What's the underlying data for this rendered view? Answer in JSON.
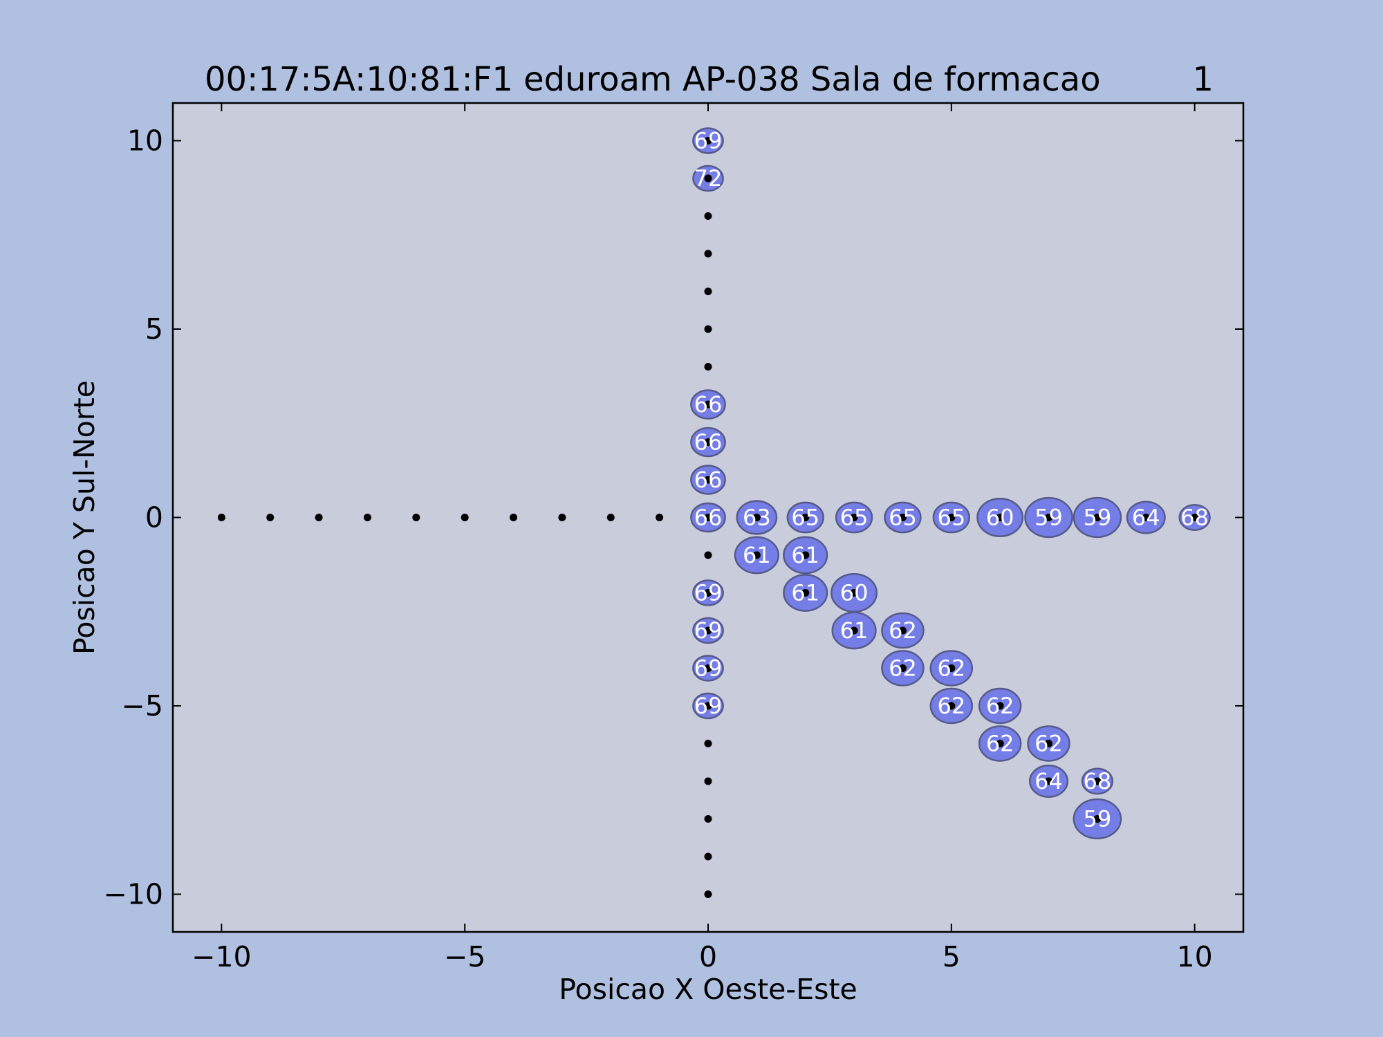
{
  "chart_data": {
    "type": "scatter",
    "title": "00:17:5A:10:81:F1 eduroam AP-038 Sala de formacao",
    "title_suffix": "1",
    "xlabel": "Posicao X Oeste-Este",
    "ylabel": "Posicao Y Sul-Norte",
    "xlim": [
      -11,
      11
    ],
    "ylim": [
      -11,
      11
    ],
    "x_ticks": [
      -10,
      -5,
      0,
      5,
      10
    ],
    "y_ticks": [
      -10,
      -5,
      0,
      5,
      10
    ],
    "x_tick_labels": [
      "−10",
      "−5",
      "0",
      "5",
      "10"
    ],
    "y_tick_labels": [
      "−10",
      "−5",
      "0",
      "5",
      "10"
    ],
    "grid": false,
    "colors": {
      "figure_background": "#b0c0e0",
      "plot_background": "#c8ccdb",
      "marker_fill": "#6670e8",
      "marker_edge": "#555a8a",
      "point_color": "#000000",
      "label_color": "#ffffff"
    },
    "grid_points": [
      {
        "x": -10,
        "y": 0
      },
      {
        "x": -9,
        "y": 0
      },
      {
        "x": -8,
        "y": 0
      },
      {
        "x": -7,
        "y": 0
      },
      {
        "x": -6,
        "y": 0
      },
      {
        "x": -5,
        "y": 0
      },
      {
        "x": -4,
        "y": 0
      },
      {
        "x": -3,
        "y": 0
      },
      {
        "x": -2,
        "y": 0
      },
      {
        "x": -1,
        "y": 0
      },
      {
        "x": 0,
        "y": 10
      },
      {
        "x": 0,
        "y": 9
      },
      {
        "x": 0,
        "y": 8
      },
      {
        "x": 0,
        "y": 7
      },
      {
        "x": 0,
        "y": 6
      },
      {
        "x": 0,
        "y": 5
      },
      {
        "x": 0,
        "y": 4
      },
      {
        "x": 0,
        "y": 3
      },
      {
        "x": 0,
        "y": 2
      },
      {
        "x": 0,
        "y": 1
      },
      {
        "x": 0,
        "y": 0
      },
      {
        "x": 0,
        "y": -1
      },
      {
        "x": 0,
        "y": -2
      },
      {
        "x": 0,
        "y": -3
      },
      {
        "x": 0,
        "y": -4
      },
      {
        "x": 0,
        "y": -5
      },
      {
        "x": 0,
        "y": -6
      },
      {
        "x": 0,
        "y": -7
      },
      {
        "x": 0,
        "y": -8
      },
      {
        "x": 0,
        "y": -9
      },
      {
        "x": 0,
        "y": -10
      },
      {
        "x": 1,
        "y": 0
      },
      {
        "x": 2,
        "y": 0
      },
      {
        "x": 3,
        "y": 0
      },
      {
        "x": 4,
        "y": 0
      },
      {
        "x": 5,
        "y": 0
      },
      {
        "x": 6,
        "y": 0
      },
      {
        "x": 7,
        "y": 0
      },
      {
        "x": 8,
        "y": 0
      },
      {
        "x": 9,
        "y": 0
      },
      {
        "x": 10,
        "y": 0
      },
      {
        "x": 1,
        "y": -1
      },
      {
        "x": 2,
        "y": -1
      },
      {
        "x": 2,
        "y": -2
      },
      {
        "x": 3,
        "y": -2
      },
      {
        "x": 3,
        "y": -3
      },
      {
        "x": 4,
        "y": -3
      },
      {
        "x": 4,
        "y": -4
      },
      {
        "x": 5,
        "y": -4
      },
      {
        "x": 5,
        "y": -5
      },
      {
        "x": 6,
        "y": -5
      },
      {
        "x": 6,
        "y": -6
      },
      {
        "x": 7,
        "y": -6
      },
      {
        "x": 7,
        "y": -7
      },
      {
        "x": 8,
        "y": -7
      },
      {
        "x": 8,
        "y": -8
      }
    ],
    "measurements": [
      {
        "x": 0,
        "y": 10,
        "value": 69
      },
      {
        "x": 0,
        "y": 9,
        "value": 72
      },
      {
        "x": 0,
        "y": 3,
        "value": 66
      },
      {
        "x": 0,
        "y": 2,
        "value": 66
      },
      {
        "x": 0,
        "y": 1,
        "value": 66
      },
      {
        "x": 0,
        "y": 0,
        "value": 66
      },
      {
        "x": 1,
        "y": 0,
        "value": 63
      },
      {
        "x": 2,
        "y": 0,
        "value": 65
      },
      {
        "x": 3,
        "y": 0,
        "value": 65
      },
      {
        "x": 4,
        "y": 0,
        "value": 65
      },
      {
        "x": 5,
        "y": 0,
        "value": 65
      },
      {
        "x": 6,
        "y": 0,
        "value": 60
      },
      {
        "x": 7,
        "y": 0,
        "value": 59
      },
      {
        "x": 8,
        "y": 0,
        "value": 59
      },
      {
        "x": 9,
        "y": 0,
        "value": 64
      },
      {
        "x": 10,
        "y": 0,
        "value": 68
      },
      {
        "x": 1,
        "y": -1,
        "value": 61
      },
      {
        "x": 2,
        "y": -1,
        "value": 61
      },
      {
        "x": 0,
        "y": -2,
        "value": 69
      },
      {
        "x": 2,
        "y": -2,
        "value": 61
      },
      {
        "x": 3,
        "y": -2,
        "value": 60
      },
      {
        "x": 0,
        "y": -3,
        "value": 69
      },
      {
        "x": 3,
        "y": -3,
        "value": 61
      },
      {
        "x": 4,
        "y": -3,
        "value": 62
      },
      {
        "x": 0,
        "y": -4,
        "value": 69
      },
      {
        "x": 4,
        "y": -4,
        "value": 62
      },
      {
        "x": 5,
        "y": -4,
        "value": 62
      },
      {
        "x": 0,
        "y": -5,
        "value": 69
      },
      {
        "x": 5,
        "y": -5,
        "value": 62
      },
      {
        "x": 6,
        "y": -5,
        "value": 62
      },
      {
        "x": 6,
        "y": -6,
        "value": 62
      },
      {
        "x": 7,
        "y": -6,
        "value": 62
      },
      {
        "x": 7,
        "y": -7,
        "value": 64
      },
      {
        "x": 8,
        "y": -7,
        "value": 68
      },
      {
        "x": 8,
        "y": -8,
        "value": 59
      }
    ]
  }
}
